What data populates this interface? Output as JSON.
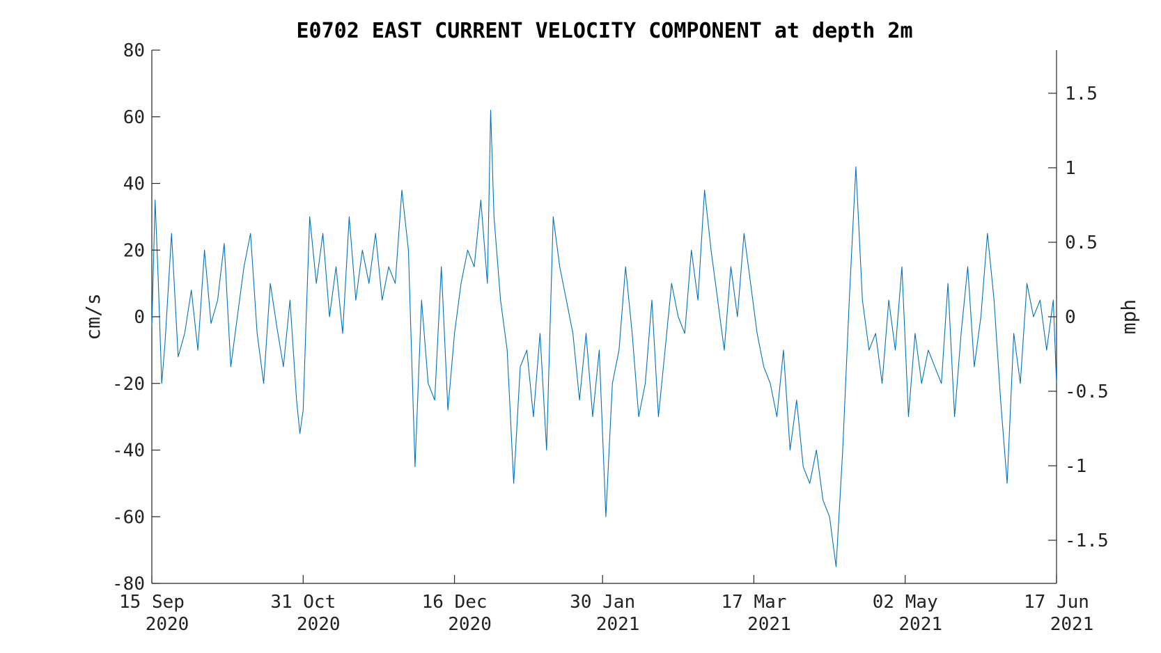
{
  "chart_data": {
    "type": "line",
    "title": "E0702 EAST CURRENT VELOCITY COMPONENT at depth 2m",
    "xlabel": "",
    "ylabel": "cm/s",
    "ylabel_right": "mph",
    "xlim": [
      "2020-09-15",
      "2021-06-17"
    ],
    "ylim": [
      -80,
      80
    ],
    "ylim_right": [
      -1.7895,
      1.7895
    ],
    "grid": false,
    "legend": "none",
    "line_color": "#0072BD",
    "x_ticks": [
      {
        "date": "2020-09-15",
        "label_day": "15 Sep",
        "label_year": "2020"
      },
      {
        "date": "2020-10-31",
        "label_day": "31 Oct",
        "label_year": "2020"
      },
      {
        "date": "2020-12-16",
        "label_day": "16 Dec",
        "label_year": "2020"
      },
      {
        "date": "2021-01-30",
        "label_day": "30 Jan",
        "label_year": "2021"
      },
      {
        "date": "2021-03-17",
        "label_day": "17 Mar",
        "label_year": "2021"
      },
      {
        "date": "2021-05-02",
        "label_day": "02 May",
        "label_year": "2021"
      },
      {
        "date": "2021-06-17",
        "label_day": "17 Jun",
        "label_year": "2021"
      }
    ],
    "y_ticks": [
      "80",
      "60",
      "40",
      "20",
      "0",
      "-20",
      "-40",
      "-60",
      "-80"
    ],
    "y_ticks_right": [
      "1.5",
      "1",
      "0.5",
      "0",
      "-0.5",
      "-1",
      "-1.5"
    ],
    "series": [
      {
        "x": [
          "2020-09-15",
          "2020-09-16",
          "2020-09-17",
          "2020-09-18",
          "2020-09-19",
          "2020-09-21",
          "2020-09-23",
          "2020-09-25",
          "2020-09-27",
          "2020-09-29",
          "2020-10-01",
          "2020-10-03",
          "2020-10-05",
          "2020-10-07",
          "2020-10-09",
          "2020-10-11",
          "2020-10-13",
          "2020-10-15",
          "2020-10-17",
          "2020-10-19",
          "2020-10-21",
          "2020-10-23",
          "2020-10-25",
          "2020-10-27",
          "2020-10-29",
          "2020-10-30",
          "2020-10-31",
          "2020-11-01",
          "2020-11-02",
          "2020-11-04",
          "2020-11-06",
          "2020-11-08",
          "2020-11-10",
          "2020-11-12",
          "2020-11-14",
          "2020-11-16",
          "2020-11-18",
          "2020-11-20",
          "2020-11-22",
          "2020-11-24",
          "2020-11-26",
          "2020-11-28",
          "2020-11-30",
          "2020-12-02",
          "2020-12-04",
          "2020-12-06",
          "2020-12-08",
          "2020-12-10",
          "2020-12-12",
          "2020-12-14",
          "2020-12-16",
          "2020-12-18",
          "2020-12-20",
          "2020-12-22",
          "2020-12-24",
          "2020-12-26",
          "2020-12-27",
          "2020-12-28",
          "2020-12-30",
          "2021-01-01",
          "2021-01-03",
          "2021-01-05",
          "2021-01-07",
          "2021-01-09",
          "2021-01-11",
          "2021-01-13",
          "2021-01-15",
          "2021-01-17",
          "2021-01-19",
          "2021-01-21",
          "2021-01-23",
          "2021-01-25",
          "2021-01-27",
          "2021-01-29",
          "2021-01-31",
          "2021-02-02",
          "2021-02-04",
          "2021-02-06",
          "2021-02-08",
          "2021-02-10",
          "2021-02-12",
          "2021-02-14",
          "2021-02-16",
          "2021-02-18",
          "2021-02-20",
          "2021-02-22",
          "2021-02-24",
          "2021-02-26",
          "2021-02-28",
          "2021-03-02",
          "2021-03-04",
          "2021-03-06",
          "2021-03-08",
          "2021-03-10",
          "2021-03-12",
          "2021-03-14",
          "2021-03-16",
          "2021-03-18",
          "2021-03-20",
          "2021-03-22",
          "2021-03-24",
          "2021-03-26",
          "2021-03-28",
          "2021-03-30",
          "2021-04-01",
          "2021-04-03",
          "2021-04-05",
          "2021-04-07",
          "2021-04-09",
          "2021-04-11",
          "2021-04-13",
          "2021-04-15",
          "2021-04-17",
          "2021-04-19",
          "2021-04-21",
          "2021-04-23",
          "2021-04-25",
          "2021-04-27",
          "2021-04-29",
          "2021-05-01",
          "2021-05-03",
          "2021-05-05",
          "2021-05-07",
          "2021-05-09",
          "2021-05-11",
          "2021-05-13",
          "2021-05-15",
          "2021-05-17",
          "2021-05-19",
          "2021-05-21",
          "2021-05-23",
          "2021-05-25",
          "2021-05-27",
          "2021-05-29",
          "2021-05-31",
          "2021-06-02",
          "2021-06-04",
          "2021-06-06",
          "2021-06-08",
          "2021-06-10",
          "2021-06-12",
          "2021-06-14",
          "2021-06-16",
          "2021-06-17"
        ],
        "values": [
          -3,
          35,
          10,
          -20,
          -8,
          25,
          -12,
          -5,
          8,
          -10,
          20,
          -2,
          5,
          22,
          -15,
          0,
          15,
          25,
          -5,
          -20,
          10,
          -3,
          -15,
          5,
          -25,
          -35,
          -28,
          2,
          30,
          10,
          25,
          0,
          15,
          -5,
          30,
          5,
          20,
          10,
          25,
          5,
          15,
          10,
          38,
          20,
          -45,
          5,
          -20,
          -25,
          15,
          -28,
          -5,
          10,
          20,
          15,
          35,
          10,
          62,
          30,
          5,
          -10,
          -50,
          -15,
          -10,
          -30,
          -5,
          -40,
          30,
          15,
          5,
          -5,
          -25,
          -5,
          -30,
          -10,
          -60,
          -20,
          -10,
          15,
          -5,
          -30,
          -20,
          5,
          -30,
          -10,
          10,
          0,
          -5,
          20,
          5,
          38,
          20,
          5,
          -10,
          15,
          0,
          25,
          10,
          -5,
          -15,
          -20,
          -30,
          -10,
          -40,
          -25,
          -45,
          -50,
          -40,
          -55,
          -60,
          -75,
          -40,
          5,
          45,
          5,
          -10,
          -5,
          -20,
          5,
          -10,
          15,
          -30,
          -5,
          -20,
          -10,
          -15,
          -20,
          10,
          -30,
          -5,
          15,
          -15,
          0,
          25,
          5,
          -25,
          -50,
          -5,
          -20,
          10,
          0,
          5,
          -10,
          5,
          -20
        ]
      }
    ]
  }
}
